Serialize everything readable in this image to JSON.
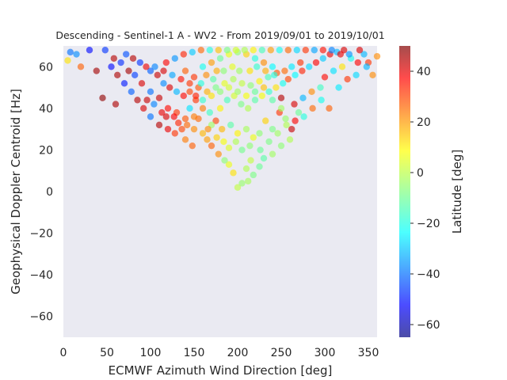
{
  "chart_data": {
    "type": "scatter",
    "title": "Descending - Sentinel-1 A - WV2 - From 2019/09/01 to 2019/10/01",
    "xlabel": "ECMWF Azimuth Wind Direction [deg]",
    "ylabel": "Geophysical Doppler Centroid [Hz]",
    "xlim": [
      0,
      360
    ],
    "ylim": [
      -70,
      70
    ],
    "xticks": [
      0,
      50,
      100,
      150,
      200,
      250,
      300,
      350
    ],
    "yticks": [
      -60,
      -40,
      -20,
      0,
      20,
      40,
      60
    ],
    "grid": false,
    "background": "#eaeaf2",
    "colorbar": {
      "label": "Latitude [deg]",
      "range": [
        -65,
        50
      ],
      "ticks": [
        -60,
        -40,
        -20,
        0,
        20,
        40
      ],
      "colormap": "jet"
    },
    "points_note_shape": "dense cloud of points, upward-opening parabola with vertex near x=200, y=2",
    "points": [
      [
        200,
        2,
        0
      ],
      [
        205,
        4,
        -5
      ],
      [
        212,
        5,
        -3
      ],
      [
        218,
        8,
        -8
      ],
      [
        195,
        9,
        10
      ],
      [
        210,
        11,
        -2
      ],
      [
        190,
        13,
        5
      ],
      [
        225,
        12,
        -10
      ],
      [
        185,
        15,
        -6
      ],
      [
        215,
        15,
        0
      ],
      [
        230,
        16,
        -12
      ],
      [
        178,
        18,
        20
      ],
      [
        240,
        18,
        -4
      ],
      [
        205,
        20,
        -9
      ],
      [
        190,
        21,
        3
      ],
      [
        170,
        22,
        25
      ],
      [
        250,
        22,
        -6
      ],
      [
        260,
        25,
        -2
      ],
      [
        165,
        25,
        18
      ],
      [
        148,
        22,
        25
      ],
      [
        140,
        25,
        22
      ],
      [
        128,
        28,
        30
      ],
      [
        120,
        30,
        38
      ],
      [
        110,
        32,
        44
      ],
      [
        100,
        36,
        -38
      ],
      [
        92,
        40,
        40
      ],
      [
        85,
        44,
        44
      ],
      [
        78,
        48,
        -40
      ],
      [
        70,
        52,
        -48
      ],
      [
        62,
        56,
        45
      ],
      [
        55,
        60,
        -50
      ],
      [
        45,
        45,
        48
      ],
      [
        60,
        42,
        45
      ],
      [
        38,
        58,
        46
      ],
      [
        20,
        60,
        25
      ],
      [
        15,
        66,
        -35
      ],
      [
        8,
        67,
        -38
      ],
      [
        5,
        63,
        10
      ],
      [
        48,
        68,
        -45
      ],
      [
        30,
        68,
        -50
      ],
      [
        355,
        56,
        20
      ],
      [
        350,
        62,
        30
      ],
      [
        345,
        66,
        -30
      ],
      [
        340,
        68,
        40
      ],
      [
        330,
        64,
        -20
      ],
      [
        320,
        60,
        10
      ],
      [
        310,
        58,
        -25
      ],
      [
        300,
        55,
        35
      ],
      [
        305,
        40,
        25
      ],
      [
        295,
        50,
        -15
      ],
      [
        285,
        48,
        20
      ],
      [
        275,
        45,
        -30
      ],
      [
        265,
        42,
        40
      ],
      [
        270,
        38,
        -10
      ],
      [
        262,
        30,
        42
      ],
      [
        255,
        35,
        -5
      ],
      [
        248,
        38,
        30
      ],
      [
        240,
        30,
        -8
      ],
      [
        232,
        34,
        12
      ],
      [
        225,
        28,
        -6
      ],
      [
        218,
        26,
        5
      ],
      [
        210,
        30,
        -3
      ],
      [
        200,
        28,
        8
      ],
      [
        192,
        32,
        -12
      ],
      [
        182,
        30,
        15
      ],
      [
        175,
        34,
        28
      ],
      [
        168,
        38,
        -15
      ],
      [
        160,
        40,
        22
      ],
      [
        152,
        44,
        30
      ],
      [
        145,
        40,
        -25
      ],
      [
        138,
        46,
        35
      ],
      [
        130,
        48,
        -30
      ],
      [
        122,
        50,
        40
      ],
      [
        115,
        52,
        -35
      ],
      [
        108,
        56,
        42
      ],
      [
        100,
        58,
        -40
      ],
      [
        95,
        60,
        38
      ],
      [
        88,
        62,
        -45
      ],
      [
        80,
        64,
        44
      ],
      [
        72,
        66,
        -42
      ],
      [
        150,
        30,
        20
      ],
      [
        155,
        35,
        24
      ],
      [
        160,
        28,
        15
      ],
      [
        170,
        32,
        -4
      ],
      [
        180,
        40,
        8
      ],
      [
        188,
        44,
        -14
      ],
      [
        196,
        46,
        2
      ],
      [
        204,
        42,
        -8
      ],
      [
        212,
        40,
        -2
      ],
      [
        220,
        44,
        -12
      ],
      [
        228,
        46,
        6
      ],
      [
        236,
        48,
        -16
      ],
      [
        244,
        50,
        10
      ],
      [
        252,
        52,
        -20
      ],
      [
        258,
        54,
        28
      ],
      [
        266,
        56,
        -22
      ],
      [
        274,
        58,
        32
      ],
      [
        282,
        60,
        -26
      ],
      [
        290,
        62,
        36
      ],
      [
        298,
        64,
        -28
      ],
      [
        306,
        66,
        38
      ],
      [
        314,
        67,
        -30
      ],
      [
        322,
        68,
        40
      ],
      [
        250,
        45,
        44
      ],
      [
        150,
        55,
        30
      ],
      [
        140,
        58,
        25
      ],
      [
        160,
        60,
        -20
      ],
      [
        170,
        62,
        18
      ],
      [
        180,
        64,
        -10
      ],
      [
        190,
        66,
        5
      ],
      [
        200,
        67,
        -5
      ],
      [
        210,
        66,
        12
      ],
      [
        220,
        64,
        -18
      ],
      [
        230,
        62,
        20
      ],
      [
        240,
        60,
        -22
      ],
      [
        245,
        57,
        26
      ],
      [
        235,
        55,
        -14
      ],
      [
        225,
        53,
        8
      ],
      [
        215,
        51,
        -6
      ],
      [
        205,
        52,
        0
      ],
      [
        195,
        54,
        -2
      ],
      [
        185,
        52,
        4
      ],
      [
        175,
        50,
        -8
      ],
      [
        165,
        48,
        16
      ],
      [
        155,
        50,
        26
      ],
      [
        145,
        52,
        30
      ],
      [
        135,
        54,
        34
      ],
      [
        125,
        56,
        -32
      ],
      [
        115,
        58,
        40
      ],
      [
        105,
        60,
        -36
      ],
      [
        120,
        40,
        35
      ],
      [
        130,
        38,
        30
      ],
      [
        140,
        35,
        26
      ],
      [
        150,
        36,
        22
      ],
      [
        160,
        44,
        -16
      ],
      [
        170,
        46,
        10
      ],
      [
        180,
        48,
        -6
      ],
      [
        190,
        50,
        2
      ],
      [
        200,
        48,
        -4
      ],
      [
        210,
        46,
        6
      ],
      [
        220,
        48,
        -10
      ],
      [
        230,
        50,
        14
      ],
      [
        240,
        44,
        -12
      ],
      [
        250,
        40,
        -4
      ],
      [
        110,
        45,
        42
      ],
      [
        100,
        48,
        -38
      ],
      [
        90,
        52,
        40
      ],
      [
        82,
        56,
        -44
      ],
      [
        75,
        58,
        46
      ],
      [
        66,
        62,
        -46
      ],
      [
        58,
        64,
        44
      ],
      [
        118,
        62,
        36
      ],
      [
        128,
        64,
        -34
      ],
      [
        138,
        66,
        32
      ],
      [
        148,
        67,
        -28
      ],
      [
        158,
        68,
        24
      ],
      [
        168,
        68,
        -18
      ],
      [
        178,
        68,
        14
      ],
      [
        188,
        68,
        -8
      ],
      [
        198,
        68,
        2
      ],
      [
        208,
        68,
        -2
      ],
      [
        218,
        68,
        8
      ],
      [
        228,
        68,
        -14
      ],
      [
        238,
        68,
        18
      ],
      [
        248,
        68,
        -20
      ],
      [
        258,
        68,
        24
      ],
      [
        268,
        68,
        -26
      ],
      [
        278,
        68,
        30
      ],
      [
        288,
        68,
        -32
      ],
      [
        298,
        68,
        34
      ],
      [
        308,
        68,
        -36
      ],
      [
        318,
        66,
        38
      ],
      [
        328,
        66,
        -34
      ],
      [
        338,
        62,
        36
      ],
      [
        348,
        60,
        -30
      ],
      [
        360,
        65,
        20
      ],
      [
        145,
        48,
        28
      ],
      [
        152,
        46,
        32
      ],
      [
        158,
        52,
        -18
      ],
      [
        164,
        56,
        20
      ],
      [
        172,
        54,
        -12
      ],
      [
        176,
        58,
        16
      ],
      [
        184,
        58,
        -6
      ],
      [
        194,
        60,
        4
      ],
      [
        202,
        58,
        -4
      ],
      [
        214,
        58,
        10
      ],
      [
        222,
        60,
        -16
      ],
      [
        232,
        58,
        16
      ],
      [
        242,
        56,
        -18
      ],
      [
        254,
        58,
        24
      ],
      [
        262,
        60,
        -24
      ],
      [
        272,
        62,
        30
      ],
      [
        136,
        30,
        28
      ],
      [
        132,
        33,
        32
      ],
      [
        142,
        32,
        24
      ],
      [
        127,
        36,
        36
      ],
      [
        118,
        36,
        40
      ],
      [
        113,
        38,
        38
      ],
      [
        104,
        42,
        -36
      ],
      [
        96,
        44,
        42
      ],
      [
        184,
        24,
        6
      ],
      [
        198,
        24,
        -2
      ],
      [
        214,
        22,
        -6
      ],
      [
        226,
        20,
        -10
      ],
      [
        236,
        24,
        -8
      ],
      [
        246,
        28,
        -4
      ],
      [
        176,
        26,
        12
      ],
      [
        166,
        30,
        20
      ],
      [
        256,
        32,
        -2
      ],
      [
        266,
        34,
        36
      ],
      [
        276,
        36,
        -18
      ],
      [
        286,
        40,
        24
      ],
      [
        296,
        44,
        -20
      ],
      [
        316,
        50,
        -24
      ],
      [
        326,
        54,
        30
      ],
      [
        336,
        56,
        -26
      ]
    ]
  }
}
